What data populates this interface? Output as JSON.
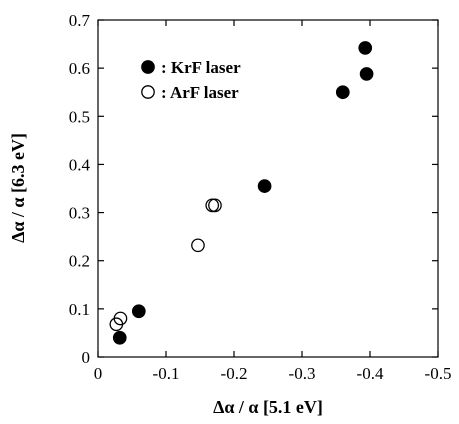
{
  "chart_data": {
    "type": "scatter",
    "xlabel": "Δα / α [5.1 eV]",
    "ylabel": "Δα / α [6.3 eV]",
    "xlim": [
      0,
      -0.5
    ],
    "ylim": [
      0,
      0.7
    ],
    "x_ticks": [
      0,
      -0.1,
      -0.2,
      -0.3,
      -0.4,
      -0.5
    ],
    "x_tick_labels": [
      "0",
      "-0.1",
      "-0.2",
      "-0.3",
      "-0.4",
      "-0.5"
    ],
    "y_ticks": [
      0,
      0.1,
      0.2,
      0.3,
      0.4,
      0.5,
      0.6,
      0.7
    ],
    "y_tick_labels": [
      "0",
      "0.1",
      "0.2",
      "0.3",
      "0.4",
      "0.5",
      "0.6",
      "0.7"
    ],
    "grid": false,
    "legend_position": "top-left",
    "series": [
      {
        "name": ": KrF laser",
        "marker": "filled-circle",
        "color": "#000000",
        "points": [
          {
            "x": -0.032,
            "y": 0.04
          },
          {
            "x": -0.06,
            "y": 0.095
          },
          {
            "x": -0.245,
            "y": 0.355
          },
          {
            "x": -0.36,
            "y": 0.55
          },
          {
            "x": -0.393,
            "y": 0.642
          },
          {
            "x": -0.395,
            "y": 0.588
          }
        ]
      },
      {
        "name": ": ArF laser",
        "marker": "open-circle",
        "color": "#000000",
        "points": [
          {
            "x": -0.027,
            "y": 0.068
          },
          {
            "x": -0.033,
            "y": 0.08
          },
          {
            "x": -0.147,
            "y": 0.232
          },
          {
            "x": -0.168,
            "y": 0.315
          },
          {
            "x": -0.172,
            "y": 0.315
          }
        ]
      }
    ]
  }
}
